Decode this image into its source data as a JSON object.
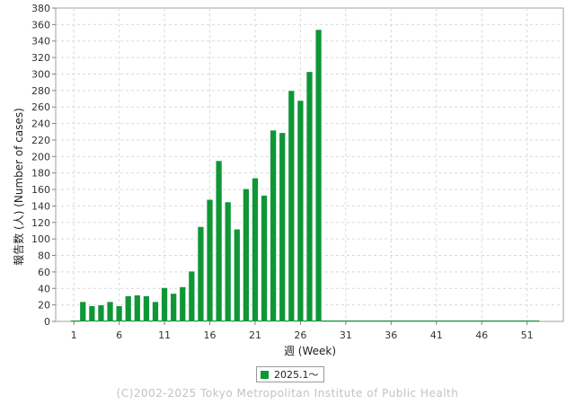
{
  "chart_data": {
    "type": "bar",
    "xlabel": "週 (Week)",
    "ylabel": "報告数 (人) (Number of cases)",
    "xlim": [
      -1,
      55
    ],
    "ylim": [
      0,
      380
    ],
    "xticks": [
      1,
      6,
      11,
      16,
      21,
      26,
      31,
      36,
      41,
      46,
      51
    ],
    "yticks": [
      0,
      20,
      40,
      60,
      80,
      100,
      120,
      140,
      160,
      180,
      200,
      220,
      240,
      260,
      280,
      300,
      320,
      340,
      360,
      380
    ],
    "grid": true,
    "legend_position": "bottom",
    "series": [
      {
        "name": "2025.1〜",
        "color": "#0f9636",
        "x": [
          1,
          2,
          3,
          4,
          5,
          6,
          7,
          8,
          9,
          10,
          11,
          12,
          13,
          14,
          15,
          16,
          17,
          18,
          19,
          20,
          21,
          22,
          23,
          24,
          25,
          26,
          27,
          28,
          29,
          30,
          31,
          32,
          33,
          34,
          35,
          36,
          37,
          38,
          39,
          40,
          41,
          42,
          43,
          44,
          45,
          46,
          47,
          48,
          49,
          50,
          51,
          52
        ],
        "values": [
          0,
          24,
          19,
          20,
          24,
          19,
          31,
          32,
          31,
          24,
          41,
          34,
          42,
          61,
          115,
          148,
          195,
          145,
          112,
          161,
          174,
          153,
          232,
          229,
          280,
          268,
          303,
          354,
          0,
          0,
          0,
          0,
          0,
          0,
          0,
          0,
          0,
          0,
          0,
          0,
          0,
          0,
          0,
          0,
          0,
          0,
          0,
          0,
          0,
          0,
          0,
          0
        ]
      }
    ]
  },
  "legend": {
    "label": "2025.1〜",
    "color": "#0f9636"
  },
  "footer": {
    "copyright": "(C)2002-2025 Tokyo Metropolitan Institute of Public Health"
  }
}
